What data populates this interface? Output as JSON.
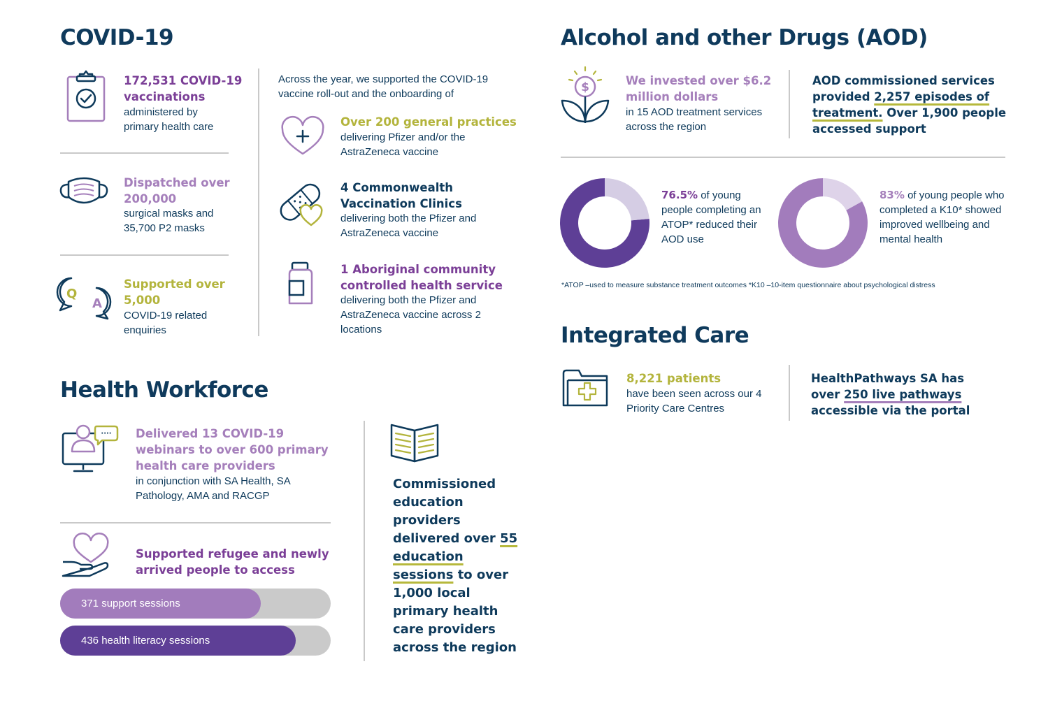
{
  "covid": {
    "heading": "COVID-19",
    "vacc_highlight": "172,531 COVID-19 vaccinations",
    "vacc_text": "administered by primary health care",
    "masks_highlight": "Dispatched over 200,000",
    "masks_text": "surgical masks and 35,700 P2 masks",
    "enq_highlight": "Supported over 5,000",
    "enq_text": "COVID-19 related enquiries",
    "qa_q": "Q",
    "qa_a": "A",
    "intro": "Across the year, we supported the COVID-19 vaccine roll-out and the onboarding of",
    "gp_highlight": "Over 200 general practices",
    "gp_text": "delivering Pfizer and/or the AstraZeneca vaccine",
    "cvc_highlight": "4 Commonwealth Vaccination Clinics",
    "cvc_text": "delivering both the Pfizer and AstraZeneca vaccine",
    "acchs_highlight": "1 Aboriginal community controlled health service",
    "acchs_text": "delivering both the Pfizer and AstraZeneca vaccine across 2 locations"
  },
  "aod": {
    "heading": "Alcohol and other Drugs (AOD)",
    "invest_highlight": "We invested over $6.2 million dollars",
    "invest_text": "in 15 AOD treatment services across the region",
    "dollar_symbol": "$",
    "episodes_pre": "AOD commissioned services provided ",
    "episodes_num": "2,257 episodes of treatment.",
    "episodes_post": " Over 1,900 people accessed support",
    "atop_pct": "76.5%",
    "atop_text": " of young people completing an ATOP* reduced their AOD use",
    "k10_pct": "83%",
    "k10_text": " of young people who completed a K10* showed improved wellbeing and mental health",
    "footnote": "*ATOP –used to measure substance treatment outcomes *K10 –10-item questionnaire about psychological distress"
  },
  "chart_data": [
    {
      "type": "pie",
      "categories": [
        "reduced their AOD use",
        "other"
      ],
      "values": [
        76.5,
        23.5
      ],
      "colors": [
        "#5e3f96",
        "#d5cde4"
      ]
    },
    {
      "type": "pie",
      "categories": [
        "improved wellbeing and mental health",
        "other"
      ],
      "values": [
        83,
        17
      ],
      "colors": [
        "#a27cbc",
        "#ded3e9"
      ]
    }
  ],
  "integrated": {
    "heading": "Integrated Care",
    "patients_highlight": "8,221 patients",
    "patients_text": "have been seen across our 4 Priority Care Centres",
    "hp_pre": "HealthPathways SA has over ",
    "hp_num": "250 live pathways",
    "hp_post": " accessible via the portal"
  },
  "workforce": {
    "heading": "Health Workforce",
    "webinar_highlight": "Delivered 13 COVID-19 webinars to over 600 primary health care providers",
    "webinar_text": "in conjunction with SA Health, SA Pathology, AMA and RACGP",
    "refugee_highlight": "Supported refugee and newly arrived people to access",
    "bars": [
      {
        "label": "371 support sessions",
        "value": 371,
        "color": "#a27cbc"
      },
      {
        "label": "436 health literacy sessions",
        "value": 436,
        "color": "#5e3f96"
      }
    ],
    "edu_pre": "Commissioned education providers delivered over ",
    "edu_num": "55 education sessions",
    "edu_post": " to over 1,000 local primary health care providers across the region",
    "chat_dots": "····"
  }
}
